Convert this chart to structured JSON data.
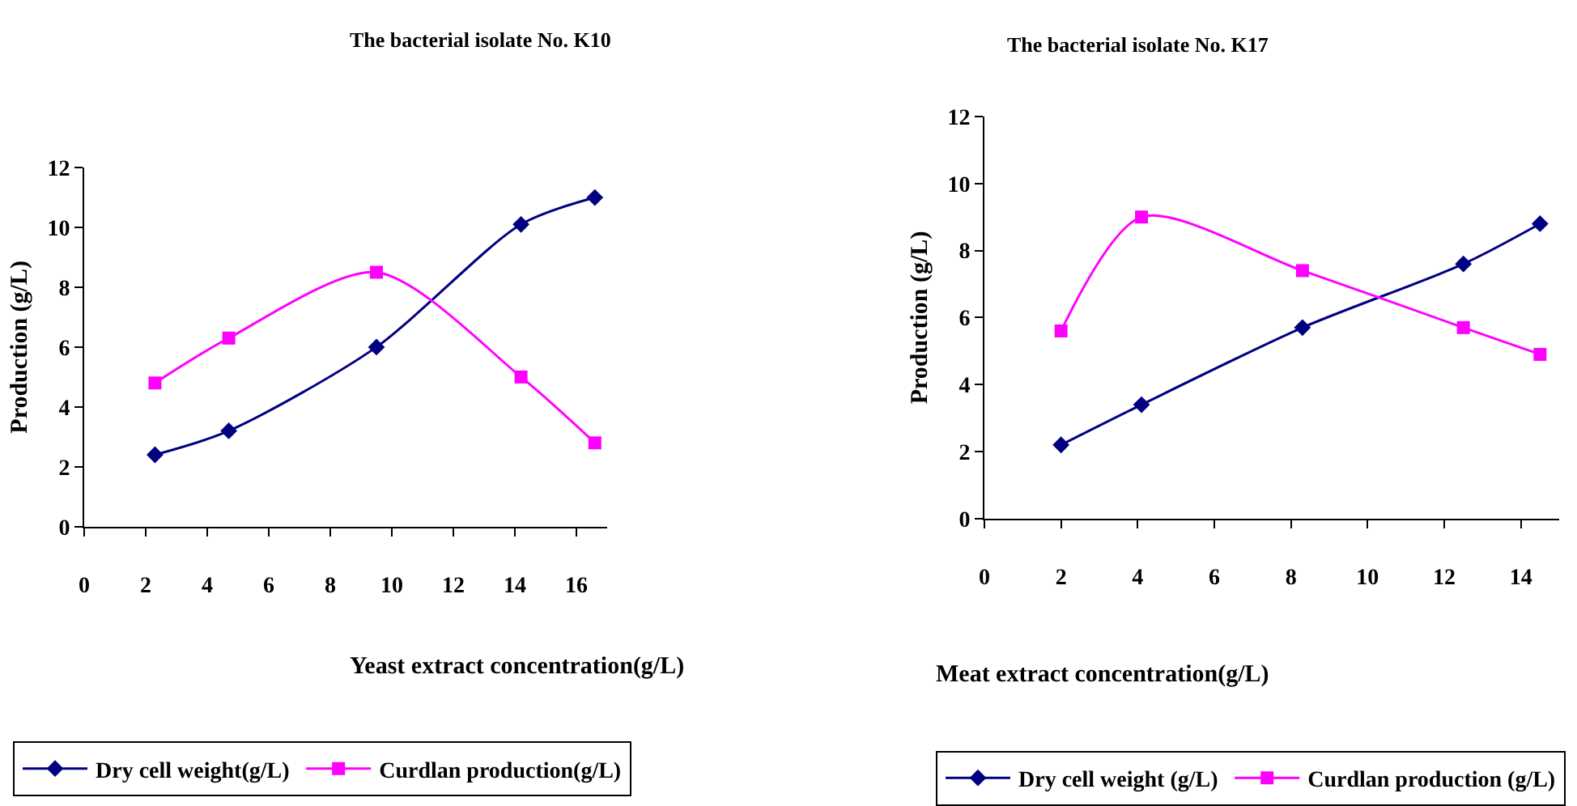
{
  "chart_data": [
    {
      "type": "line",
      "title": "The bacterial isolate No. K10",
      "xlabel": "Yeast extract concentration(g/L)",
      "ylabel": "Production (g/L)",
      "x": [
        2.3,
        4.7,
        9.5,
        14.2,
        16.6
      ],
      "xlim": [
        0,
        17
      ],
      "xticks": [
        0,
        2,
        4,
        6,
        8,
        10,
        12,
        14,
        16
      ],
      "ylim": [
        0,
        12
      ],
      "yticks": [
        0,
        2,
        4,
        6,
        8,
        10,
        12
      ],
      "grid": false,
      "legend": "bottom",
      "series": [
        {
          "name": "Dry cell weight(g/L)",
          "color": "#000080",
          "marker": "diamond",
          "values": [
            2.4,
            3.2,
            6.0,
            10.1,
            11.0
          ]
        },
        {
          "name": "Curdlan production(g/L)",
          "color": "#ff00ff",
          "marker": "square",
          "values": [
            4.8,
            6.3,
            8.5,
            5.0,
            2.8
          ]
        }
      ]
    },
    {
      "type": "line",
      "title": "The bacterial isolate No. K17",
      "xlabel": "Meat extract concentration(g/L)",
      "ylabel": "Production (g/L)",
      "x": [
        2,
        4.1,
        8.3,
        12.5,
        14.5
      ],
      "xlim": [
        0,
        15
      ],
      "xticks": [
        0,
        2,
        4,
        6,
        8,
        10,
        12,
        14
      ],
      "ylim": [
        0,
        12
      ],
      "yticks": [
        0,
        2,
        4,
        6,
        8,
        10,
        12
      ],
      "grid": false,
      "legend": "bottom",
      "series": [
        {
          "name": "Dry cell weight (g/L)",
          "color": "#000080",
          "marker": "diamond",
          "values": [
            2.2,
            3.4,
            5.7,
            7.6,
            8.8
          ]
        },
        {
          "name": "Curdlan production (g/L)",
          "color": "#ff00ff",
          "marker": "square",
          "values": [
            5.6,
            9.0,
            7.4,
            5.7,
            4.9
          ]
        }
      ]
    }
  ]
}
